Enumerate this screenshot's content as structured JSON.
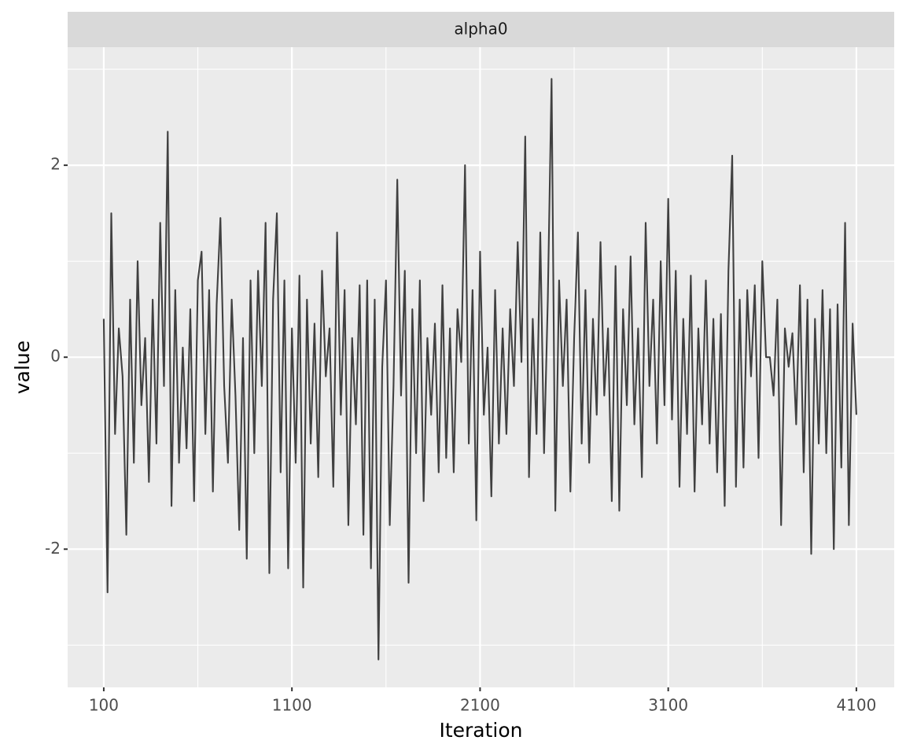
{
  "chart_data": {
    "type": "line",
    "facet_label": "alpha0",
    "xlabel": "Iteration",
    "ylabel": "value",
    "xlim": [
      -92,
      4301
    ],
    "ylim": [
      -3.44,
      3.23
    ],
    "xticks": [
      100,
      1100,
      2100,
      3100,
      4100
    ],
    "yticks": [
      -2,
      0,
      2
    ],
    "x_minor_ticks": [
      600,
      1600,
      2600,
      3600
    ],
    "y_minor_ticks": [
      -3,
      -1,
      1,
      3
    ],
    "grid": true,
    "x": [
      100,
      120,
      140,
      160,
      180,
      200,
      220,
      240,
      260,
      280,
      300,
      320,
      340,
      360,
      380,
      400,
      420,
      440,
      460,
      480,
      500,
      520,
      540,
      560,
      580,
      600,
      620,
      640,
      660,
      680,
      700,
      720,
      740,
      760,
      780,
      800,
      820,
      840,
      860,
      880,
      900,
      920,
      940,
      960,
      980,
      1000,
      1020,
      1040,
      1060,
      1080,
      1100,
      1120,
      1140,
      1160,
      1180,
      1200,
      1220,
      1240,
      1260,
      1280,
      1300,
      1320,
      1340,
      1360,
      1380,
      1400,
      1420,
      1440,
      1460,
      1480,
      1500,
      1520,
      1540,
      1560,
      1580,
      1600,
      1620,
      1640,
      1660,
      1680,
      1700,
      1720,
      1740,
      1760,
      1780,
      1800,
      1820,
      1840,
      1860,
      1880,
      1900,
      1920,
      1940,
      1960,
      1980,
      2000,
      2020,
      2040,
      2060,
      2080,
      2100,
      2120,
      2140,
      2160,
      2180,
      2200,
      2220,
      2240,
      2260,
      2280,
      2300,
      2320,
      2340,
      2360,
      2380,
      2400,
      2420,
      2440,
      2460,
      2480,
      2500,
      2520,
      2540,
      2560,
      2580,
      2600,
      2620,
      2640,
      2660,
      2680,
      2700,
      2720,
      2740,
      2760,
      2780,
      2800,
      2820,
      2840,
      2860,
      2880,
      2900,
      2920,
      2940,
      2960,
      2980,
      3000,
      3020,
      3040,
      3060,
      3080,
      3100,
      3120,
      3140,
      3160,
      3180,
      3200,
      3220,
      3240,
      3260,
      3280,
      3300,
      3320,
      3340,
      3360,
      3380,
      3400,
      3420,
      3440,
      3460,
      3480,
      3500,
      3520,
      3540,
      3560,
      3580,
      3600,
      3620,
      3640,
      3660,
      3680,
      3700,
      3720,
      3740,
      3760,
      3780,
      3800,
      3820,
      3840,
      3860,
      3880,
      3900,
      3920,
      3940,
      3960,
      3980,
      4000,
      4020,
      4040,
      4060,
      4080,
      4100
    ],
    "series": [
      {
        "name": "alpha0",
        "color": "#404040",
        "values": [
          0.4,
          -2.45,
          1.5,
          -0.8,
          0.3,
          -0.2,
          -1.85,
          0.6,
          -1.1,
          1.0,
          -0.5,
          0.2,
          -1.3,
          0.6,
          -0.9,
          1.4,
          -0.3,
          2.35,
          -1.55,
          0.7,
          -1.1,
          0.1,
          -0.95,
          0.5,
          -1.5,
          0.8,
          1.1,
          -0.8,
          0.7,
          -1.4,
          0.55,
          1.45,
          -0.3,
          -1.1,
          0.6,
          -0.4,
          -1.8,
          0.2,
          -2.1,
          0.8,
          -1.0,
          0.9,
          -0.3,
          1.4,
          -2.25,
          0.6,
          1.5,
          -1.2,
          0.8,
          -2.2,
          0.3,
          -1.1,
          0.85,
          -2.4,
          0.6,
          -0.9,
          0.35,
          -1.25,
          0.9,
          -0.2,
          0.3,
          -1.35,
          1.3,
          -0.6,
          0.7,
          -1.75,
          0.2,
          -0.7,
          0.75,
          -1.85,
          0.8,
          -2.2,
          0.6,
          -3.15,
          -0.1,
          0.8,
          -1.75,
          -0.3,
          1.85,
          -0.4,
          0.9,
          -2.35,
          0.5,
          -1.0,
          0.8,
          -1.5,
          0.2,
          -0.6,
          0.35,
          -1.2,
          0.75,
          -1.05,
          0.3,
          -1.2,
          0.5,
          -0.05,
          2.0,
          -0.9,
          0.7,
          -1.7,
          1.1,
          -0.6,
          0.1,
          -1.45,
          0.7,
          -0.9,
          0.3,
          -0.8,
          0.5,
          -0.3,
          1.2,
          -0.05,
          2.3,
          -1.25,
          0.4,
          -0.8,
          1.3,
          -1.0,
          0.6,
          2.9,
          -1.6,
          0.8,
          -0.3,
          0.6,
          -1.4,
          0.2,
          1.3,
          -0.9,
          0.7,
          -1.1,
          0.4,
          -0.6,
          1.2,
          -0.4,
          0.3,
          -1.5,
          0.95,
          -1.6,
          0.5,
          -0.5,
          1.05,
          -0.7,
          0.3,
          -1.25,
          1.4,
          -0.3,
          0.6,
          -0.9,
          1.0,
          -0.5,
          1.65,
          -0.65,
          0.9,
          -1.35,
          0.4,
          -0.8,
          0.85,
          -1.4,
          0.3,
          -0.7,
          0.8,
          -0.9,
          0.4,
          -1.2,
          0.45,
          -1.55,
          0.9,
          2.1,
          -1.35,
          0.6,
          -1.15,
          0.7,
          -0.2,
          0.75,
          -1.05,
          1.0,
          0.0,
          0.0,
          -0.4,
          0.6,
          -1.75,
          0.3,
          -0.1,
          0.25,
          -0.7,
          0.75,
          -1.2,
          0.6,
          -2.05,
          0.4,
          -0.9,
          0.7,
          -1.0,
          0.5,
          -2.0,
          0.55,
          -1.15,
          1.4,
          -1.75,
          0.35,
          -0.6
        ]
      }
    ]
  }
}
